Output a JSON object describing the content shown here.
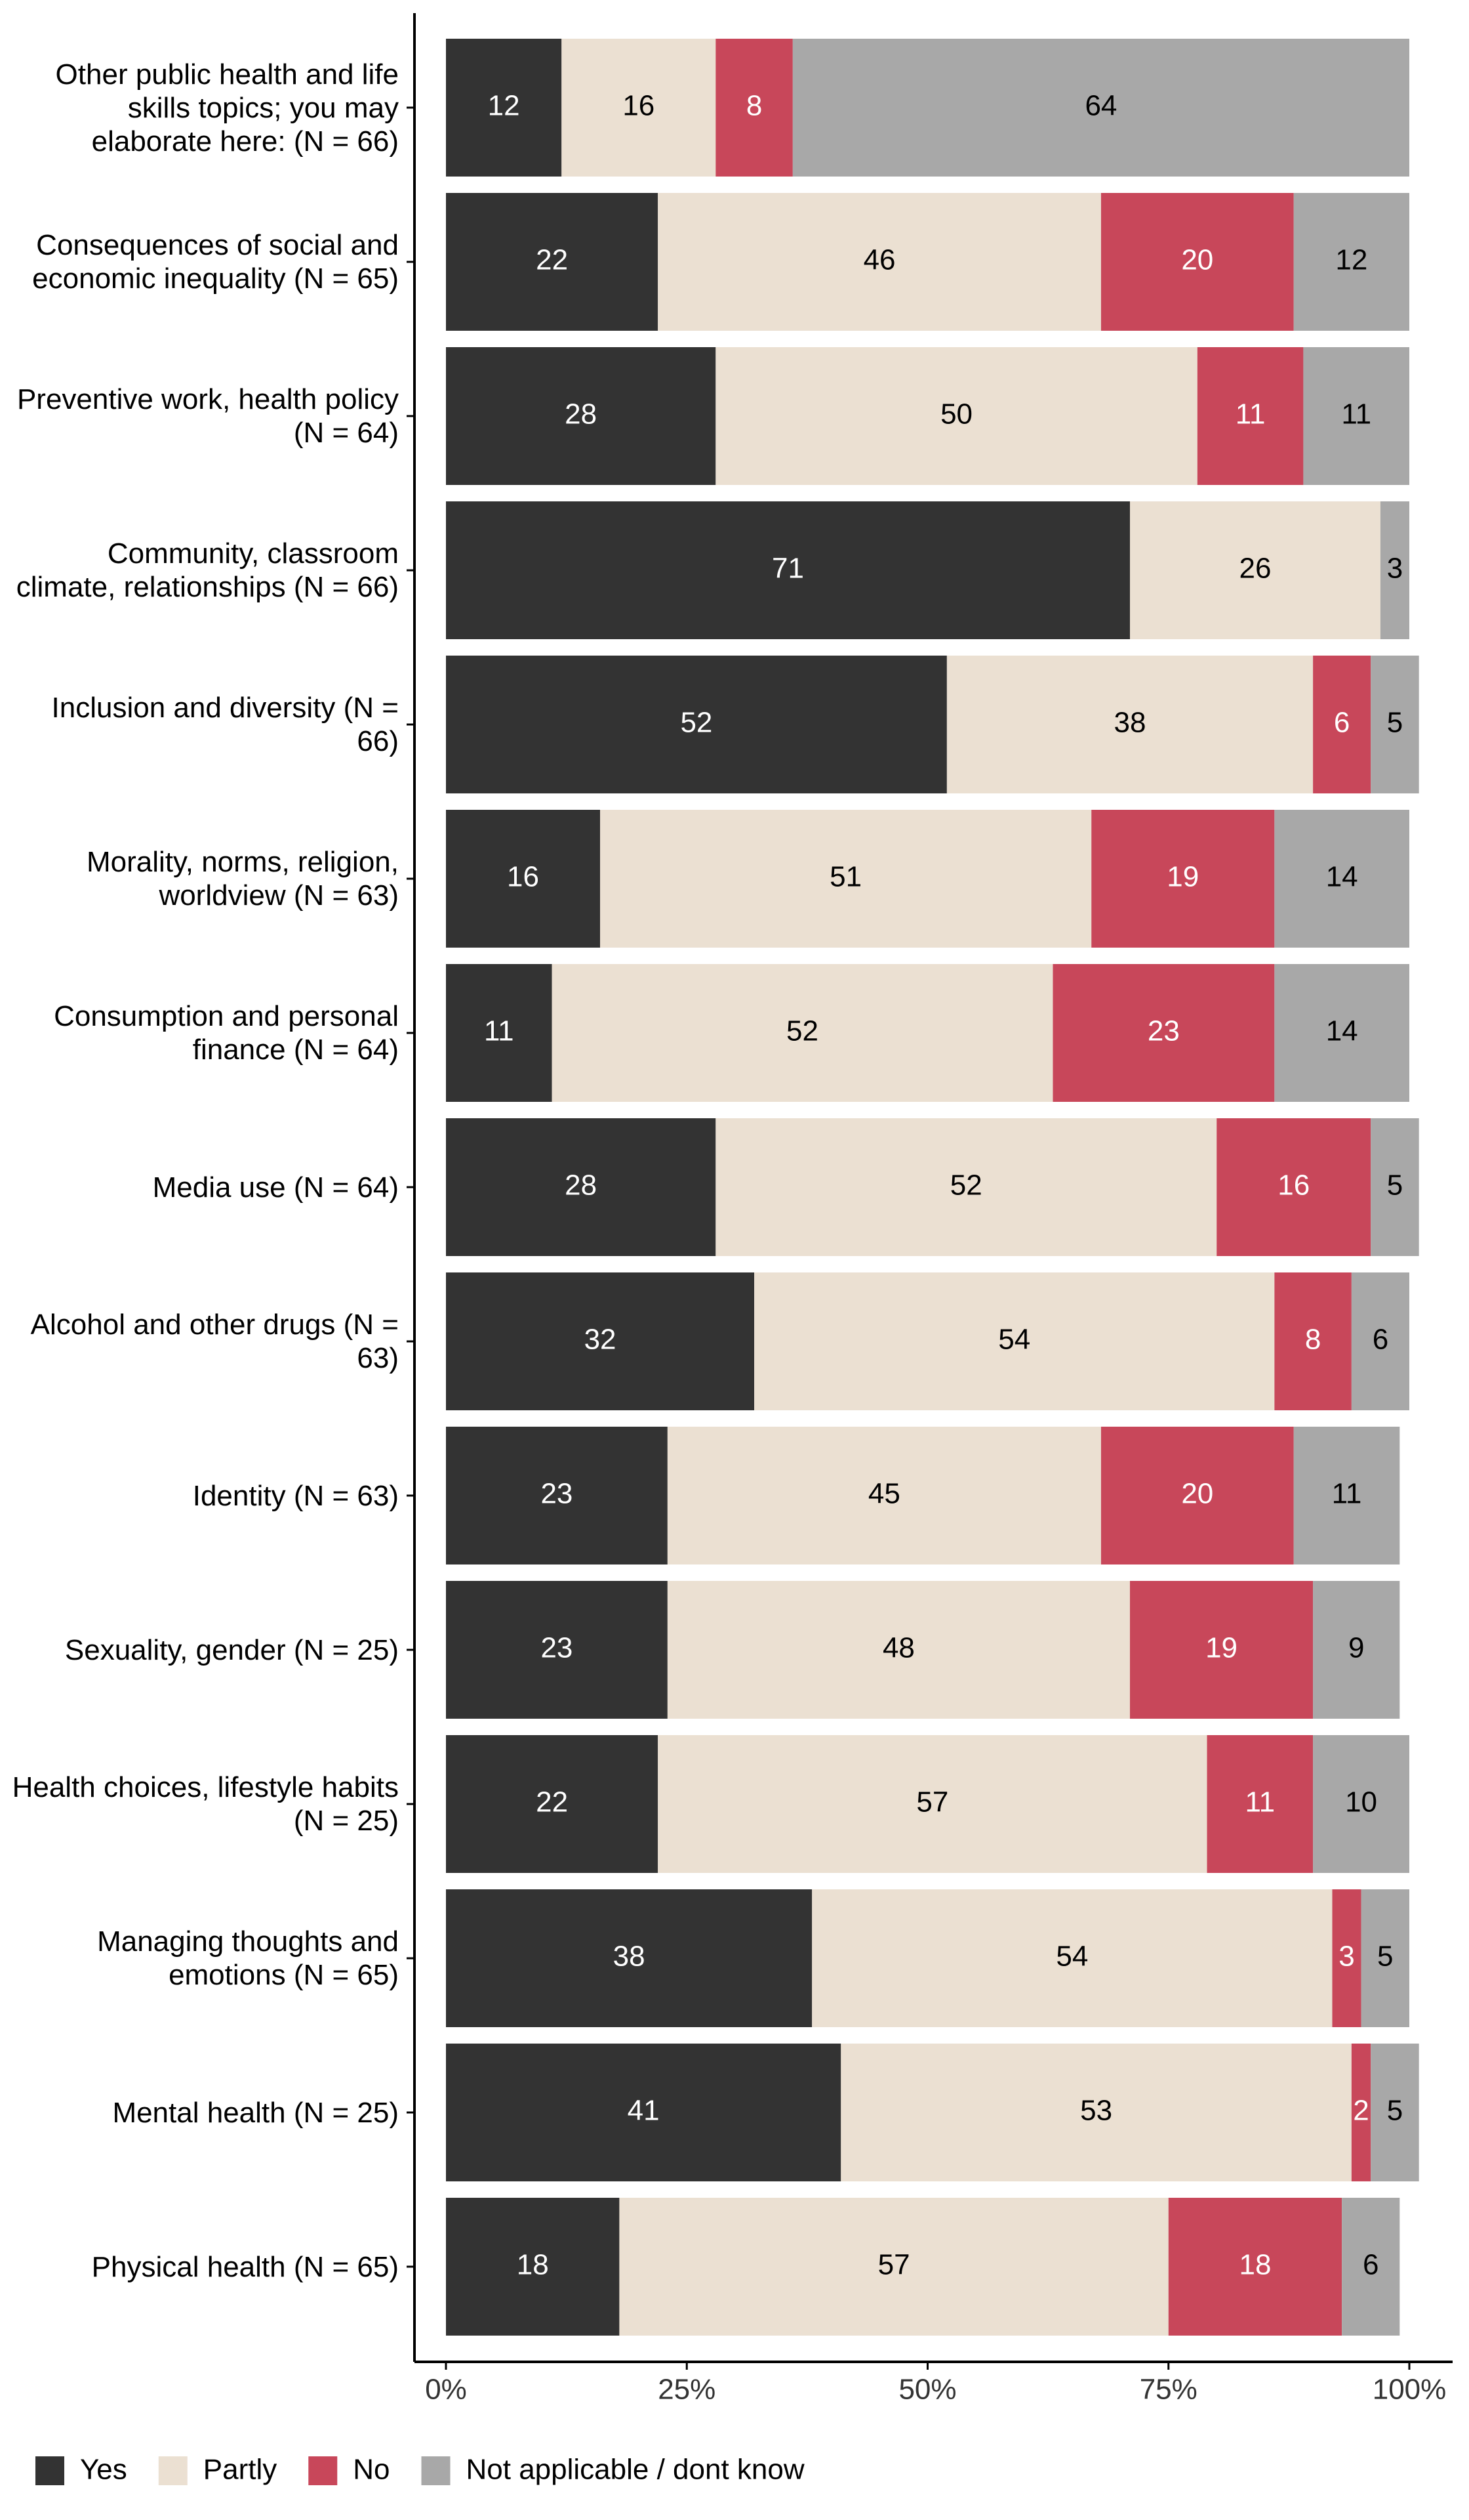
{
  "chart_data": {
    "type": "stacked-bar-horizontal",
    "categories": [
      "Other public health and life skills topics; you may elaborate here: (N = 66)",
      "Consequences of social and economic inequality (N = 65)",
      "Preventive work, health policy (N = 64)",
      "Community, classroom climate, relationships (N = 66)",
      "Inclusion and diversity (N = 66)",
      "Morality, norms, religion, worldview (N = 63)",
      "Consumption and personal finance (N = 64)",
      "Media use (N = 64)",
      "Alcohol and other drugs (N = 63)",
      "Identity (N = 63)",
      "Sexuality, gender (N = 25)",
      "Health choices, lifestyle habits (N = 25)",
      "Managing thoughts and emotions (N = 65)",
      "Mental health (N = 25)",
      "Physical health (N = 65)"
    ],
    "series": [
      {
        "name": "Yes",
        "color": "#333333",
        "values": [
          12,
          22,
          28,
          71,
          52,
          16,
          11,
          28,
          32,
          23,
          23,
          22,
          38,
          41,
          18
        ]
      },
      {
        "name": "Partly",
        "color": "#ebe0d2",
        "values": [
          16,
          46,
          50,
          26,
          38,
          51,
          52,
          52,
          54,
          45,
          48,
          57,
          54,
          53,
          57
        ]
      },
      {
        "name": "No",
        "color": "#c8475a",
        "values": [
          8,
          20,
          11,
          null,
          6,
          19,
          23,
          16,
          8,
          20,
          19,
          11,
          3,
          2,
          18
        ]
      },
      {
        "name": "Not applicable / dont know",
        "color": "#a8a8a8",
        "values": [
          64,
          12,
          11,
          3,
          5,
          14,
          14,
          5,
          6,
          11,
          9,
          10,
          5,
          5,
          6
        ]
      }
    ],
    "xlim": [
      0,
      100
    ],
    "xticks": [
      {
        "value": 0,
        "label": "0%"
      },
      {
        "value": 25,
        "label": "25%"
      },
      {
        "value": 50,
        "label": "50%"
      },
      {
        "value": 75,
        "label": "75%"
      },
      {
        "value": 100,
        "label": "100%"
      }
    ],
    "legend": "bottom"
  }
}
